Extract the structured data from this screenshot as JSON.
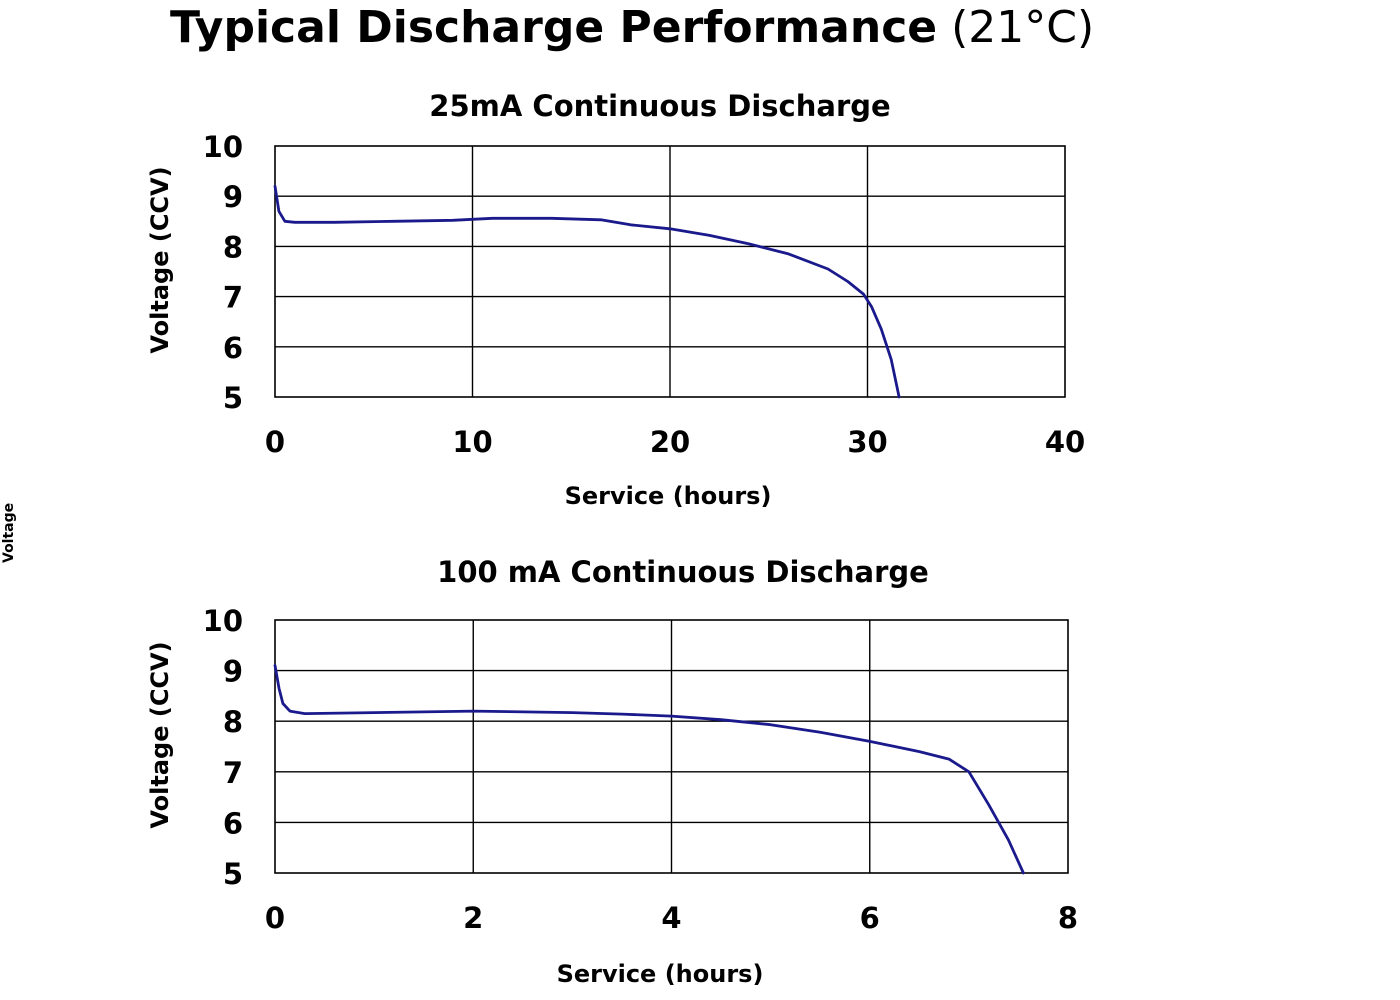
{
  "page": {
    "title_bold": "Typical Discharge Performance",
    "title_normal": "(21°C)",
    "side_fragment": "Voltage"
  },
  "chart_data": [
    {
      "type": "line",
      "title": "25mA Continuous Discharge",
      "xlabel": "Service (hours)",
      "ylabel": "Voltage (CCV)",
      "xlim": [
        0,
        40
      ],
      "ylim": [
        5,
        10
      ],
      "xticks": [
        0,
        10,
        20,
        30,
        40
      ],
      "yticks": [
        5,
        6,
        7,
        8,
        9,
        10
      ],
      "grid": true,
      "colors": {
        "line": "#1a1a8c",
        "grid": "#000000"
      },
      "series": [
        {
          "x": [
            0,
            0.2,
            0.5,
            1,
            3,
            6,
            9,
            11,
            14,
            16.5,
            18,
            20,
            22,
            24,
            26,
            28,
            29,
            29.8,
            30.2,
            30.7,
            31.2,
            31.6
          ],
          "y": [
            9.2,
            8.7,
            8.5,
            8.48,
            8.48,
            8.5,
            8.52,
            8.56,
            8.56,
            8.53,
            8.43,
            8.35,
            8.22,
            8.05,
            7.85,
            7.55,
            7.3,
            7.05,
            6.8,
            6.35,
            5.75,
            5.0
          ]
        }
      ]
    },
    {
      "type": "line",
      "title": "100 mA Continuous Discharge",
      "xlabel": "Service (hours)",
      "ylabel": "Voltage (CCV)",
      "xlim": [
        0,
        8
      ],
      "ylim": [
        5,
        10
      ],
      "xticks": [
        0,
        2,
        4,
        6,
        8
      ],
      "yticks": [
        5,
        6,
        7,
        8,
        9,
        10
      ],
      "grid": true,
      "colors": {
        "line": "#1a1a8c",
        "grid": "#000000"
      },
      "series": [
        {
          "x": [
            0,
            0.04,
            0.08,
            0.15,
            0.3,
            1,
            2,
            3,
            3.5,
            4,
            4.5,
            5,
            5.5,
            6,
            6.5,
            6.8,
            7.0,
            7.2,
            7.4,
            7.55
          ],
          "y": [
            9.1,
            8.65,
            8.35,
            8.2,
            8.15,
            8.17,
            8.2,
            8.17,
            8.14,
            8.1,
            8.03,
            7.93,
            7.78,
            7.6,
            7.4,
            7.25,
            7.0,
            6.35,
            5.65,
            5.0
          ]
        }
      ]
    }
  ]
}
